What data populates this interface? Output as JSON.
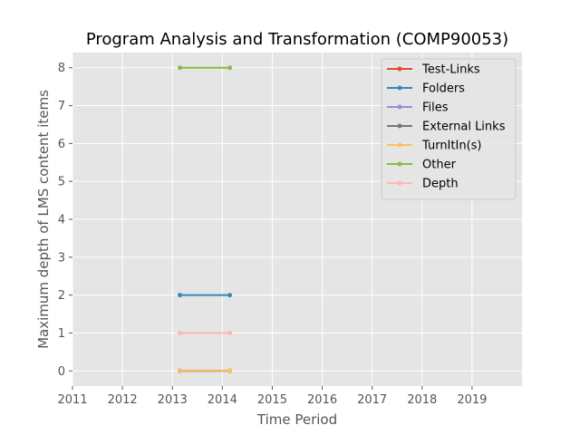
{
  "chart_data": {
    "type": "line",
    "title": "Program Analysis and Transformation (COMP90053)",
    "xlabel": "Time Period",
    "ylabel": "Maximum depth of LMS content items",
    "xlim": [
      2011,
      2020
    ],
    "ylim": [
      -0.4,
      8.4
    ],
    "xticks": [
      2011,
      2012,
      2013,
      2014,
      2015,
      2016,
      2017,
      2018,
      2019
    ],
    "xtick_labels": [
      "2011",
      "2012",
      "2013",
      "2014",
      "2015",
      "2016",
      "2017",
      "2018",
      "2019"
    ],
    "yticks": [
      0,
      1,
      2,
      3,
      4,
      5,
      6,
      7,
      8
    ],
    "ytick_labels": [
      "0",
      "1",
      "2",
      "3",
      "4",
      "5",
      "6",
      "7",
      "8"
    ],
    "grid": true,
    "legend_position": "top-right",
    "x": [
      2013.15,
      2014.15
    ],
    "series": [
      {
        "name": "Test-Links",
        "color": "#E24A33",
        "values": [
          0,
          0
        ]
      },
      {
        "name": "Folders",
        "color": "#348ABD",
        "values": [
          2,
          2
        ]
      },
      {
        "name": "Files",
        "color": "#988ED5",
        "values": [
          0,
          0
        ]
      },
      {
        "name": "External Links",
        "color": "#777777",
        "values": [
          0,
          0
        ]
      },
      {
        "name": "TurnItIn(s)",
        "color": "#FBC15E",
        "values": [
          0,
          0
        ]
      },
      {
        "name": "Other",
        "color": "#8EBA42",
        "values": [
          8,
          8
        ]
      },
      {
        "name": "Depth",
        "color": "#FFB5B8",
        "values": [
          1,
          1
        ]
      }
    ],
    "colors": {
      "plot_background": "#E5E5E5",
      "grid": "#FFFFFF"
    }
  }
}
